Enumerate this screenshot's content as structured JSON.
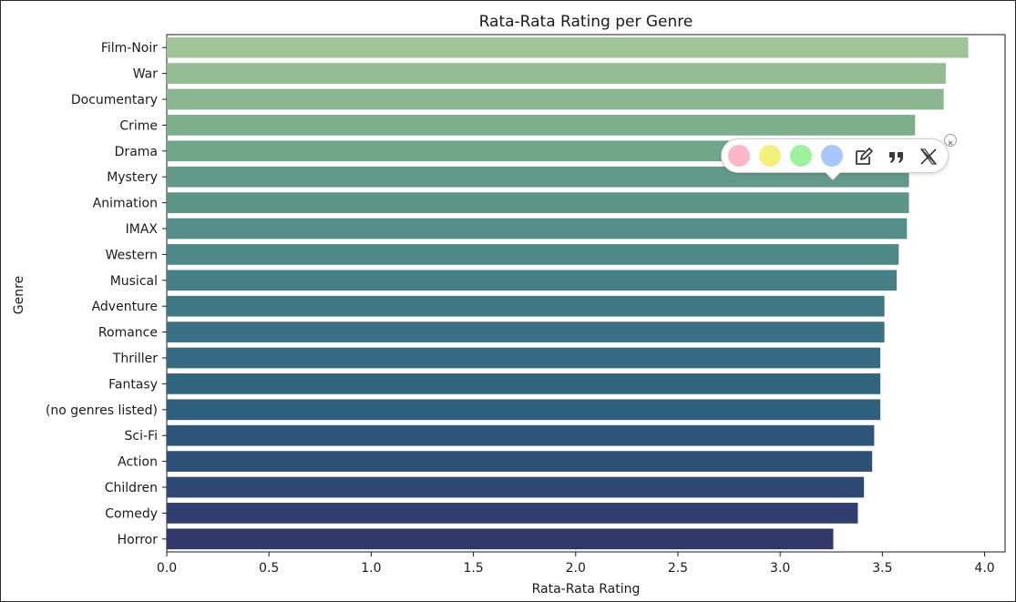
{
  "chart_data": {
    "type": "bar",
    "orientation": "horizontal",
    "title": "Rata-Rata Rating per Genre",
    "xlabel": "Rata-Rata Rating",
    "ylabel": "Genre",
    "xlim": [
      0,
      4.1
    ],
    "xticks": [
      "0.0",
      "0.5",
      "1.0",
      "1.5",
      "2.0",
      "2.5",
      "3.0",
      "3.5",
      "4.0"
    ],
    "categories": [
      "Film-Noir",
      "War",
      "Documentary",
      "Crime",
      "Drama",
      "Mystery",
      "Animation",
      "IMAX",
      "Western",
      "Musical",
      "Adventure",
      "Romance",
      "Thriller",
      "Fantasy",
      "(no genres listed)",
      "Sci-Fi",
      "Action",
      "Children",
      "Comedy",
      "Horror"
    ],
    "values": [
      3.92,
      3.81,
      3.8,
      3.66,
      3.66,
      3.63,
      3.63,
      3.62,
      3.58,
      3.57,
      3.51,
      3.51,
      3.49,
      3.49,
      3.49,
      3.46,
      3.45,
      3.41,
      3.38,
      3.26
    ],
    "colors": [
      "#9fc497",
      "#93bc92",
      "#8ab68f",
      "#7eaf8d",
      "#70a78b",
      "#63998a",
      "#5c9488",
      "#558e88",
      "#4e8887",
      "#468086",
      "#3f7885",
      "#3b7283",
      "#356b80",
      "#31657e",
      "#2e5f7c",
      "#2d567a",
      "#2e5076",
      "#2f4873",
      "#303f6f",
      "#313869"
    ],
    "grid": false,
    "palette": "crest"
  },
  "toolbar": {
    "swatches": [
      {
        "name": "pink",
        "color": "#ffb6c8"
      },
      {
        "name": "yellow",
        "color": "#f5f07a"
      },
      {
        "name": "green",
        "color": "#9ef29e"
      },
      {
        "name": "blue",
        "color": "#a8c6ff"
      }
    ],
    "icons": [
      "edit-note-icon",
      "quote-icon",
      "x-share-icon",
      "close-icon"
    ]
  }
}
